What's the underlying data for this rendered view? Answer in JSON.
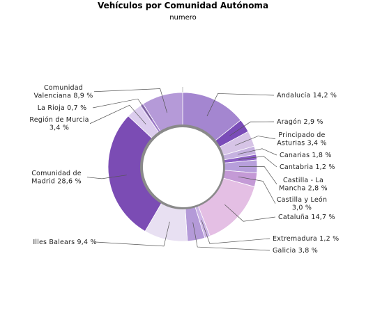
{
  "chart_data": {
    "type": "pie",
    "donut": true,
    "title": "Vehículos por Comunidad Autónoma",
    "subtitle": "numero",
    "slices": [
      {
        "label": [
          "Andalucía 14,2 %"
        ],
        "value": 14.2,
        "color": "#a486d0"
      },
      {
        "label": [
          "Aragón 2,9 %"
        ],
        "value": 2.9,
        "color": "#7a4cb8"
      },
      {
        "label": [
          "Principado de",
          "Asturias 3,4 %"
        ],
        "value": 3.4,
        "color": "#d6c4e6"
      },
      {
        "label": [
          "Canarias 1,8 %"
        ],
        "value": 1.8,
        "color": "#c6b2e0"
      },
      {
        "label": [
          "Cantabria 1,2 %"
        ],
        "value": 1.2,
        "color": "#8c60c4"
      },
      {
        "label": [
          "Castilla - La",
          "Mancha 2,8 %"
        ],
        "value": 2.8,
        "color": "#b79fdb"
      },
      {
        "label": [
          "Castilla y León",
          "3,0 %"
        ],
        "value": 3.0,
        "color": "#c49ad6"
      },
      {
        "label": [
          "Cataluña 14,7 %"
        ],
        "value": 14.7,
        "color": "#e4bfe4"
      },
      {
        "label": [
          "Extremadura 1,2 %"
        ],
        "value": 1.2,
        "color": "#cdb6e6"
      },
      {
        "label": [
          "Galicia 3,8 %"
        ],
        "value": 3.8,
        "color": "#b49ad8"
      },
      {
        "label": [
          "Illes Balears 9,4 %"
        ],
        "value": 9.4,
        "color": "#e8e0f2"
      },
      {
        "label": [
          "Comunidad de",
          "Madrid 28,6 %"
        ],
        "value": 28.6,
        "color": "#7b4cb4"
      },
      {
        "label": [
          "Región de Murcia",
          "3,4 %"
        ],
        "value": 3.4,
        "color": "#dccdee"
      },
      {
        "label": [
          "La Rioja 0,7 %"
        ],
        "value": 0.7,
        "color": "#9b78c8"
      },
      {
        "label": [
          "Comunidad",
          "Valenciana 8,9 %"
        ],
        "value": 8.9,
        "color": "#b59ad8"
      }
    ]
  }
}
